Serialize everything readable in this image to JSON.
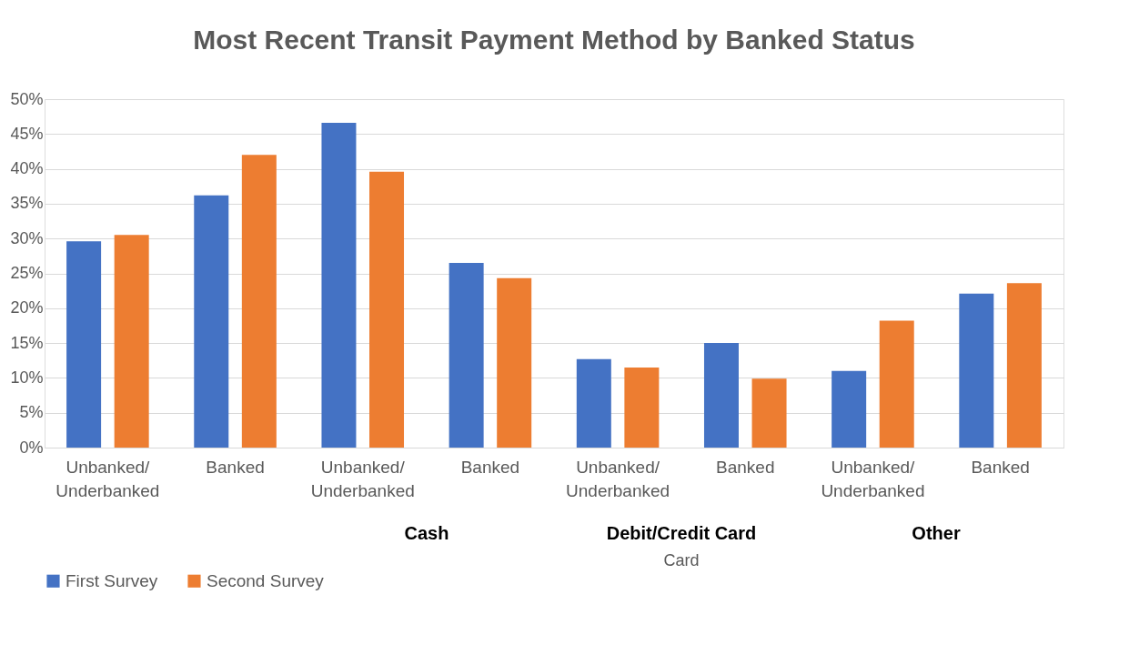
{
  "chart_data": {
    "type": "bar",
    "title": "Most Recent Transit Payment Method by Banked Status",
    "categories": [
      "Unbanked/Underbanked",
      "Banked",
      "Unbanked/Underbanked",
      "Banked",
      "Unbanked/Underbanked",
      "Banked",
      "Unbanked/Underbanked",
      "Banked"
    ],
    "series": [
      {
        "name": "First Survey",
        "color": "#4472c4",
        "values": [
          29.6,
          36.2,
          46.6,
          26.5,
          12.7,
          15.0,
          11.0,
          22.1
        ]
      },
      {
        "name": "Second Survey",
        "color": "#ed7d31",
        "values": [
          30.5,
          42.0,
          39.6,
          24.3,
          11.5,
          9.9,
          18.2,
          23.6
        ]
      }
    ],
    "ylim": [
      0,
      50
    ],
    "yticks": [
      {
        "value": 0,
        "label": "0%"
      },
      {
        "value": 5,
        "label": "5%"
      },
      {
        "value": 10,
        "label": "10%"
      },
      {
        "value": 15,
        "label": "15%"
      },
      {
        "value": 20,
        "label": "20%"
      },
      {
        "value": 25,
        "label": "25%"
      },
      {
        "value": 30,
        "label": "30%"
      },
      {
        "value": 35,
        "label": "35%"
      },
      {
        "value": 40,
        "label": "40%"
      },
      {
        "value": 45,
        "label": "45%"
      },
      {
        "value": 50,
        "label": "50%"
      }
    ],
    "annotations": [
      "Cash",
      "Debit/Credit Card",
      "Other",
      "Card"
    ],
    "grid": "y",
    "legend": "bottom"
  }
}
